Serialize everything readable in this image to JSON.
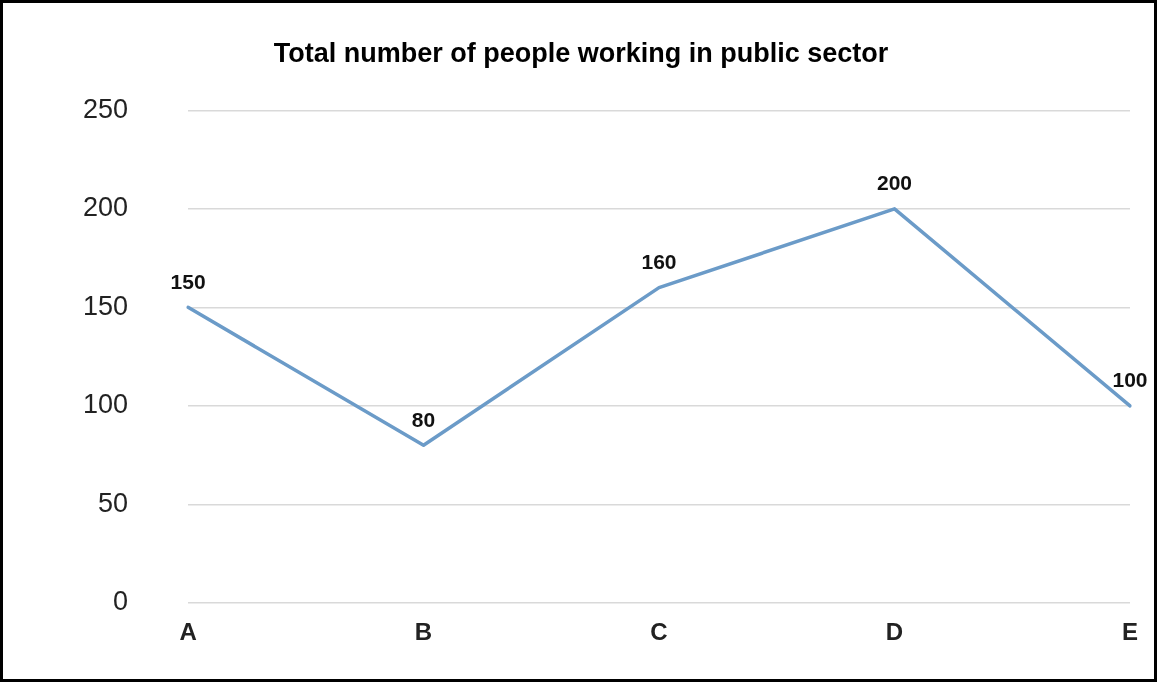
{
  "chart_data": {
    "type": "line",
    "title": "Total number of people working in public sector",
    "categories": [
      "A",
      "B",
      "C",
      "D",
      "E"
    ],
    "series": [
      {
        "color": "#6b9bc8",
        "values": [
          150,
          80,
          160,
          200,
          100
        ]
      }
    ],
    "ylim": [
      0,
      250
    ],
    "yticks": [
      0,
      50,
      100,
      150,
      200,
      250
    ],
    "grid": "y",
    "legend": false,
    "marker": "none",
    "line_style": "solid",
    "data_labels": true
  }
}
